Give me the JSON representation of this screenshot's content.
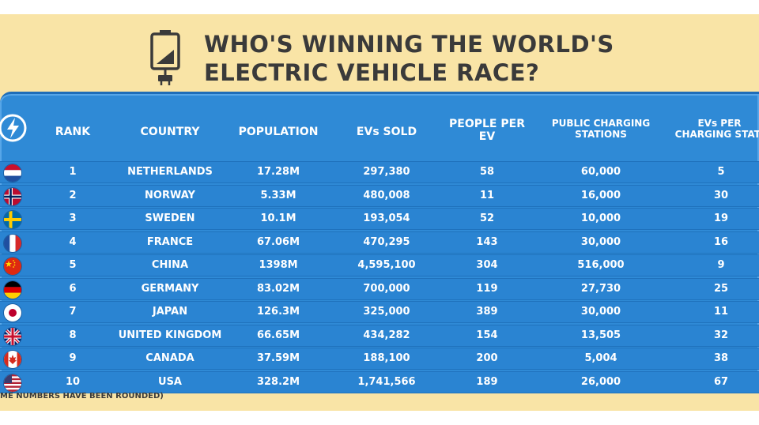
{
  "title": {
    "line1": "WHO'S WINNING THE WORLD'S",
    "line2": "ELECTRIC VEHICLE RACE?"
  },
  "icons": {
    "title": "battery-plug-icon",
    "corner": "lightning-bolt-icon"
  },
  "colors": {
    "background": "#f9e4a6",
    "table_blue": "#2f8ad6",
    "row_blue": "#2a84d2",
    "title_text": "#3a3a3a"
  },
  "footnote": "ME NUMBERS HAVE BEEN ROUNDED)",
  "chart_data": {
    "type": "table",
    "title": "WHO'S WINNING THE WORLD'S ELECTRIC VEHICLE RACE?",
    "headers": {
      "rank": "RANK",
      "country": "COUNTRY",
      "population": "POPULATION",
      "evs_sold": "EVs SOLD",
      "people_per_ev_1": "PEOPLE PER",
      "people_per_ev_2": "EV",
      "stations_1": "PUBLIC CHARGING",
      "stations_2": "STATIONS",
      "evs_per_station_1": "EVs PER",
      "evs_per_station_2": "CHARGING STATI"
    },
    "rows": [
      {
        "flag": "netherlands-flag-icon",
        "rank": "1",
        "country": "NETHERLANDS",
        "population": "17.28M",
        "evs_sold": "297,380",
        "people_per_ev": "58",
        "stations": "60,000",
        "evs_per_station": "5"
      },
      {
        "flag": "norway-flag-icon",
        "rank": "2",
        "country": "NORWAY",
        "population": "5.33M",
        "evs_sold": "480,008",
        "people_per_ev": "11",
        "stations": "16,000",
        "evs_per_station": "30"
      },
      {
        "flag": "sweden-flag-icon",
        "rank": "3",
        "country": "SWEDEN",
        "population": "10.1M",
        "evs_sold": "193,054",
        "people_per_ev": "52",
        "stations": "10,000",
        "evs_per_station": "19"
      },
      {
        "flag": "france-flag-icon",
        "rank": "4",
        "country": "FRANCE",
        "population": "67.06M",
        "evs_sold": "470,295",
        "people_per_ev": "143",
        "stations": "30,000",
        "evs_per_station": "16"
      },
      {
        "flag": "china-flag-icon",
        "rank": "5",
        "country": "CHINA",
        "population": "1398M",
        "evs_sold": "4,595,100",
        "people_per_ev": "304",
        "stations": "516,000",
        "evs_per_station": "9"
      },
      {
        "flag": "germany-flag-icon",
        "rank": "6",
        "country": "GERMANY",
        "population": "83.02M",
        "evs_sold": "700,000",
        "people_per_ev": "119",
        "stations": "27,730",
        "evs_per_station": "25"
      },
      {
        "flag": "japan-flag-icon",
        "rank": "7",
        "country": "JAPAN",
        "population": "126.3M",
        "evs_sold": "325,000",
        "people_per_ev": "389",
        "stations": "30,000",
        "evs_per_station": "11"
      },
      {
        "flag": "uk-flag-icon",
        "rank": "8",
        "country": "UNITED KINGDOM",
        "population": "66.65M",
        "evs_sold": "434,282",
        "people_per_ev": "154",
        "stations": "13,505",
        "evs_per_station": "32"
      },
      {
        "flag": "canada-flag-icon",
        "rank": "9",
        "country": "CANADA",
        "population": "37.59M",
        "evs_sold": "188,100",
        "people_per_ev": "200",
        "stations": "5,004",
        "evs_per_station": "38"
      },
      {
        "flag": "usa-flag-icon",
        "rank": "10",
        "country": "USA",
        "population": "328.2M",
        "evs_sold": "1,741,566",
        "people_per_ev": "189",
        "stations": "26,000",
        "evs_per_station": "67"
      }
    ]
  }
}
